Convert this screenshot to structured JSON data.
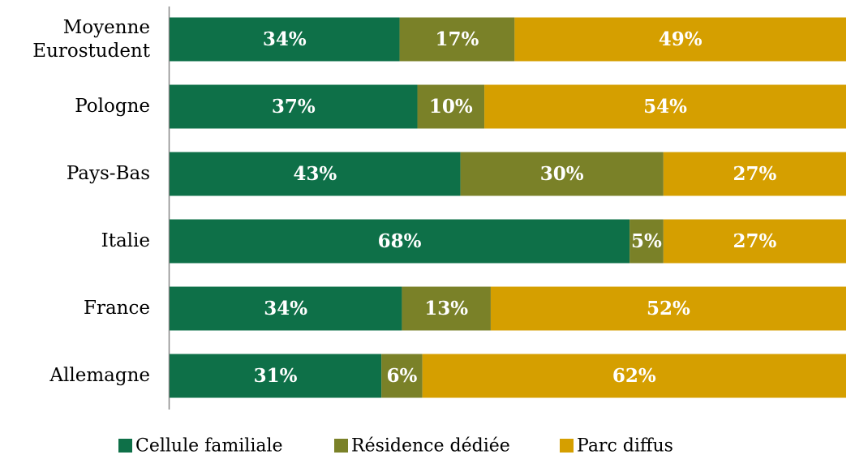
{
  "chart_data": {
    "type": "bar",
    "orientation": "horizontal",
    "stacked": "percent",
    "categories": [
      "Moyenne Eurostudent",
      "Pologne",
      "Pays-Bas",
      "Italie",
      "France",
      "Allemagne"
    ],
    "series": [
      {
        "name": "Cellule familiale",
        "color": "#0e7048",
        "values": [
          34,
          37,
          43,
          68,
          34,
          31
        ],
        "value_labels": [
          "34%",
          "37%",
          "43%",
          "68%",
          "34%",
          "31%"
        ]
      },
      {
        "name": "Résidence dédiée",
        "color": "#7a8128",
        "values": [
          17,
          10,
          30,
          5,
          13,
          6
        ],
        "value_labels": [
          "17%",
          "10%",
          "30%",
          "5%",
          "13%",
          "6%"
        ]
      },
      {
        "name": "Parc diffus",
        "color": "#d59f00",
        "values": [
          49,
          54,
          27,
          27,
          52,
          62
        ],
        "value_labels": [
          "49%",
          "54%",
          "27%",
          "27%",
          "52%",
          "62%"
        ]
      }
    ],
    "legend": "bottom"
  }
}
